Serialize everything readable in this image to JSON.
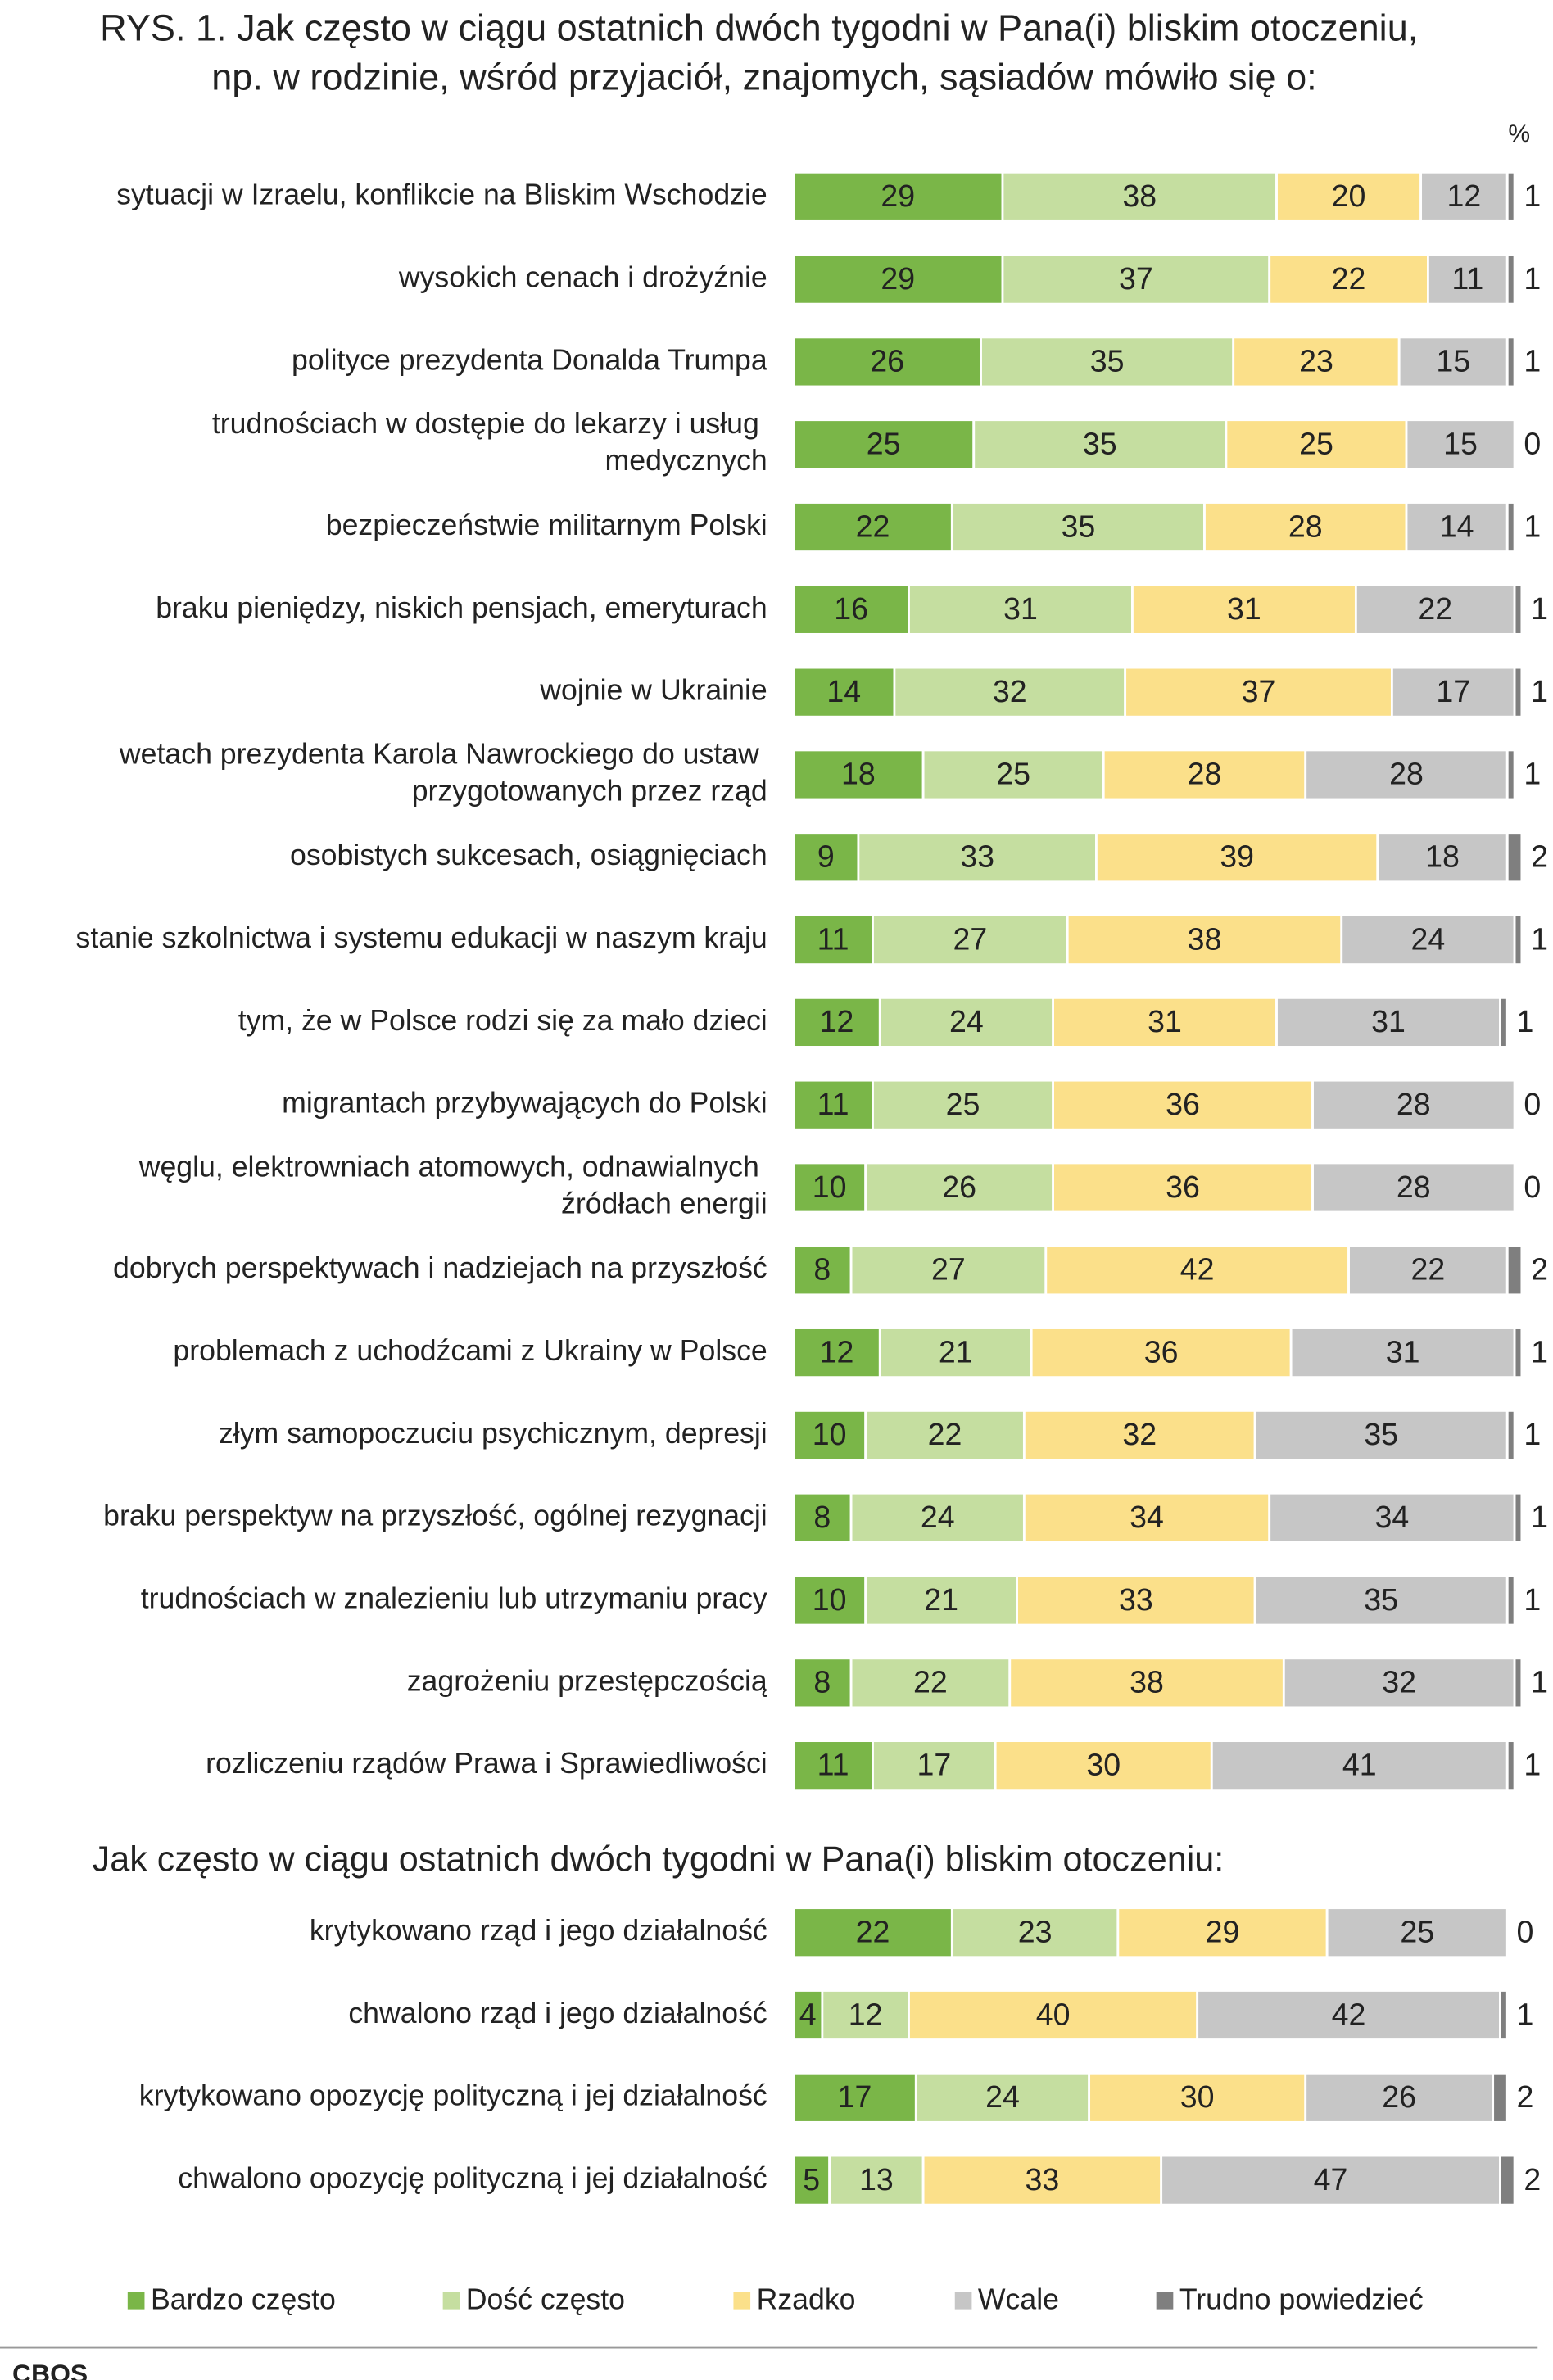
{
  "chart_data": [
    {
      "type": "stacked_bar",
      "title": "RYS. 1. Jak często w ciągu ostatnich dwóch tygodni w Pana(i) bliskim otoczeniu, np. w rodzinie, wśród przyjaciół, znajomych, sąsiadów mówiło się o:",
      "unit": "%",
      "categories": [
        "sytuacji w Izraelu, konflikcie na Bliskim Wschodzie",
        "wysokich cenach i drożyźnie",
        "polityce prezydenta Donalda Trumpa",
        "trudnościach w dostępie do lekarzy i usług medycznych",
        "bezpieczeństwie militarnym Polski",
        "braku pieniędzy, niskich pensjach, emeryturach",
        "wojnie w Ukrainie",
        "wetach prezydenta Karola Nawrockiego do ustaw przygotowanych przez rząd",
        "osobistych sukcesach, osiągnięciach",
        "stanie szkolnictwa i systemu edukacji w naszym kraju",
        "tym, że w Polsce rodzi się za mało dzieci",
        "migrantach przybywających do Polski",
        "węglu, elektrowniach atomowych, odnawialnych źródłach energii",
        "dobrych perspektywach i nadziejach na przyszłość",
        "problemach z uchodźcami z Ukrainy w Polsce",
        "złym samopoczuciu psychicznym, depresji",
        "braku perspektyw na przyszłość, ogólnej rezygnacji",
        "trudnościach w znalezieniu lub utrzymaniu pracy",
        "zagrożeniu przestępczością",
        "rozliczeniu rządów Prawa i Sprawiedliwości"
      ],
      "series": [
        {
          "name": "Bardzo często",
          "color": "#7ab648",
          "values": [
            29,
            29,
            26,
            25,
            22,
            16,
            14,
            18,
            9,
            11,
            12,
            11,
            10,
            8,
            12,
            10,
            8,
            10,
            8,
            11
          ]
        },
        {
          "name": "Dość często",
          "color": "#c5dea0",
          "values": [
            38,
            37,
            35,
            35,
            35,
            31,
            32,
            25,
            33,
            27,
            24,
            25,
            26,
            27,
            21,
            22,
            24,
            21,
            22,
            17
          ]
        },
        {
          "name": "Rzadko",
          "color": "#fbe08a",
          "values": [
            20,
            22,
            23,
            25,
            28,
            31,
            37,
            28,
            39,
            38,
            31,
            36,
            36,
            42,
            36,
            32,
            34,
            33,
            38,
            30
          ]
        },
        {
          "name": "Wcale",
          "color": "#c6c6c6",
          "values": [
            12,
            11,
            15,
            15,
            14,
            22,
            17,
            28,
            18,
            24,
            31,
            28,
            28,
            22,
            31,
            35,
            34,
            35,
            32,
            41
          ]
        },
        {
          "name": "Trudno powiedzieć",
          "color": "#7f7f7f",
          "values": [
            1,
            1,
            1,
            0,
            1,
            1,
            1,
            1,
            2,
            1,
            1,
            0,
            0,
            2,
            1,
            1,
            1,
            1,
            1,
            1
          ]
        }
      ]
    },
    {
      "type": "stacked_bar",
      "title": "Jak często w ciągu ostatnich dwóch tygodni w Pana(i) bliskim otoczeniu:",
      "categories": [
        "krytykowano rząd i jego działalność",
        "chwalono rząd i jego działalność",
        "krytykowano opozycję polityczną i jej działalność",
        "chwalono opozycję polityczną i jej działalność"
      ],
      "series": [
        {
          "color": "#7ab648",
          "values": [
            22,
            4,
            17,
            5
          ]
        },
        {
          "color": "#c5dea0",
          "values": [
            23,
            12,
            24,
            13
          ]
        },
        {
          "color": "#fbe08a",
          "values": [
            29,
            40,
            30,
            33
          ]
        },
        {
          "color": "#c6c6c6",
          "values": [
            25,
            42,
            26,
            47
          ]
        },
        {
          "color": "#7f7f7f",
          "values": [
            0,
            1,
            2,
            2
          ]
        }
      ]
    }
  ],
  "source": "CBOS"
}
